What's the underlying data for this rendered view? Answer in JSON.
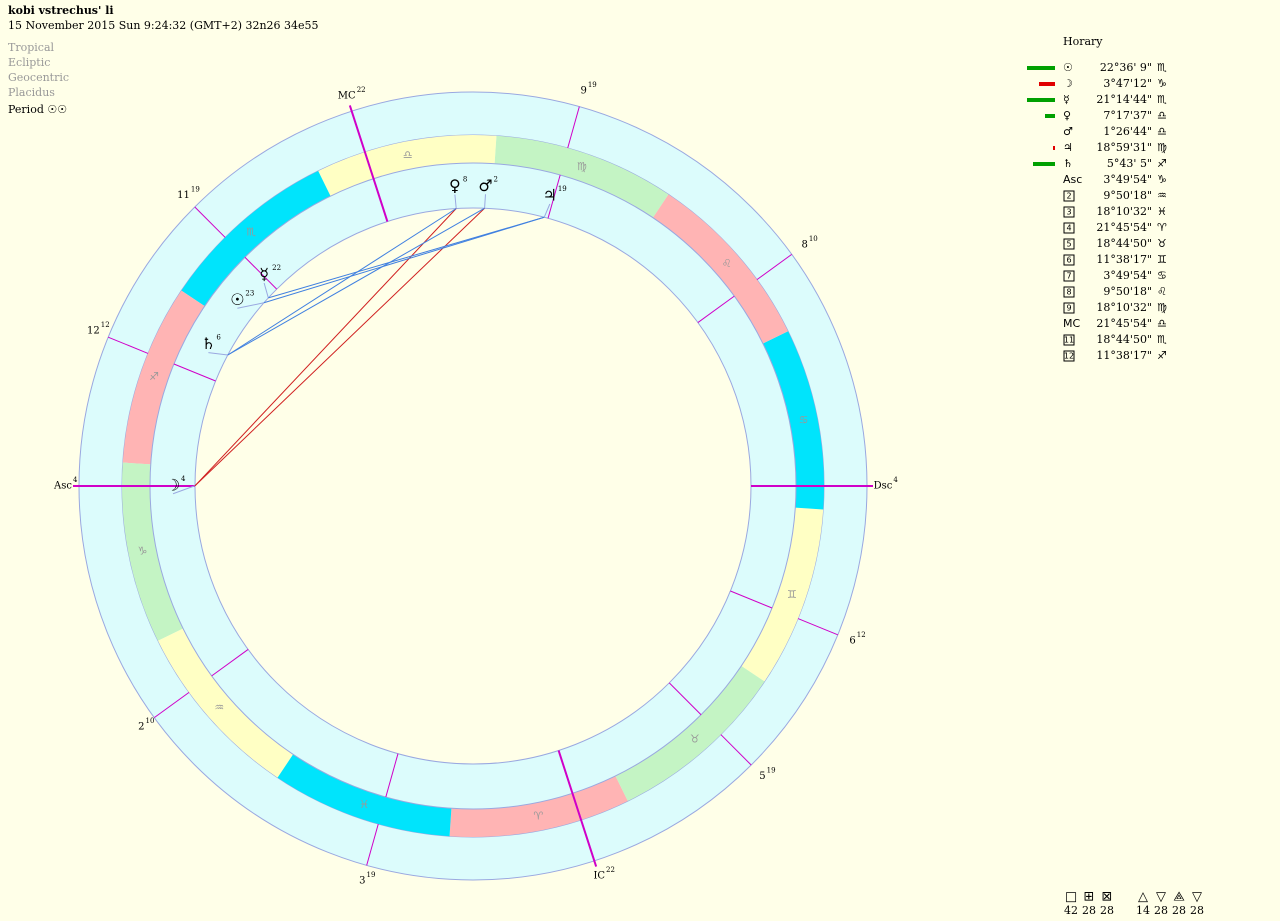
{
  "header": {
    "title": "kobi vstrechus' li",
    "subtitle": "15 November 2015  Sun   9:24:32 (GMT+2) 32n26  34e55",
    "settings": [
      "Tropical",
      "Ecliptic",
      "Geocentric",
      "Placidus"
    ],
    "period": "Period ☉☉"
  },
  "zodiac": [
    "♈",
    "♉",
    "♊",
    "♋",
    "♌",
    "♍",
    "♎",
    "♏",
    "♐",
    "♑",
    "♒",
    "♓"
  ],
  "positions": {
    "title": "Horary",
    "rows": [
      {
        "symbol": "☉",
        "position": "22°36' 9\"",
        "sign": "♏"
      },
      {
        "symbol": "☽",
        "position": "3°47'12\"",
        "sign": "♑"
      },
      {
        "symbol": "☿",
        "position": "21°14'44\"",
        "sign": "♏"
      },
      {
        "symbol": "♀",
        "position": "7°17'37\"",
        "sign": "♎"
      },
      {
        "symbol": "♂",
        "position": "1°26'44\"",
        "sign": "♎"
      },
      {
        "symbol": "♃",
        "position": "18°59'31\"",
        "sign": "♍"
      },
      {
        "symbol": "♄",
        "position": "5°43' 5\"",
        "sign": "♐"
      },
      {
        "symbol": "Asc",
        "position": "3°49'54\"",
        "sign": "♑"
      },
      {
        "symbol": "2",
        "position": "9°50'18\"",
        "sign": "♒"
      },
      {
        "symbol": "3",
        "position": "18°10'32\"",
        "sign": "♓"
      },
      {
        "symbol": "4",
        "position": "21°45'54\"",
        "sign": "♈"
      },
      {
        "symbol": "5",
        "position": "18°44'50\"",
        "sign": "♉"
      },
      {
        "symbol": "6",
        "position": "11°38'17\"",
        "sign": "♊"
      },
      {
        "symbol": "7",
        "position": "3°49'54\"",
        "sign": "♋"
      },
      {
        "symbol": "8",
        "position": "9°50'18\"",
        "sign": "♌"
      },
      {
        "symbol": "9",
        "position": "18°10'32\"",
        "sign": "♍"
      },
      {
        "symbol": "MC",
        "position": "21°45'54\"",
        "sign": "♎"
      },
      {
        "symbol": "11",
        "position": "18°44'50\"",
        "sign": "♏"
      },
      {
        "symbol": "12",
        "position": "11°38'17\"",
        "sign": "♐"
      }
    ]
  },
  "wheel": {
    "cusps": [
      {
        "label": "Asc",
        "degree": "4"
      },
      {
        "label": "2",
        "degree": "10"
      },
      {
        "label": "3",
        "degree": "19"
      },
      {
        "label": "IC",
        "degree": "22"
      },
      {
        "label": "5",
        "degree": "19"
      },
      {
        "label": "6",
        "degree": "12"
      },
      {
        "label": "Dsc",
        "degree": "4"
      },
      {
        "label": "8",
        "degree": "10"
      },
      {
        "label": "9",
        "degree": "19"
      },
      {
        "label": "MC",
        "degree": "22"
      },
      {
        "label": "11",
        "degree": "19"
      },
      {
        "label": "12",
        "degree": "12"
      }
    ],
    "planets": [
      {
        "glyph": "☉",
        "degree": "23"
      },
      {
        "glyph": "☽",
        "degree": "4"
      },
      {
        "glyph": "☿",
        "degree": "22"
      },
      {
        "glyph": "♀",
        "degree": "8"
      },
      {
        "glyph": "♂",
        "degree": "2"
      },
      {
        "glyph": "♃",
        "degree": "19"
      },
      {
        "glyph": "♄",
        "degree": "6"
      }
    ]
  },
  "aspect_counts": [
    {
      "symbol": "□",
      "count": "42"
    },
    {
      "symbol": "⊞",
      "count": "28"
    },
    {
      "symbol": "⊠",
      "count": "28"
    },
    {
      "symbol": "△",
      "count": "14"
    },
    {
      "symbol": "▽",
      "count": "28"
    },
    {
      "symbol": "⟁",
      "count": "28"
    },
    {
      "symbol": "▽",
      "count": "28"
    }
  ]
}
